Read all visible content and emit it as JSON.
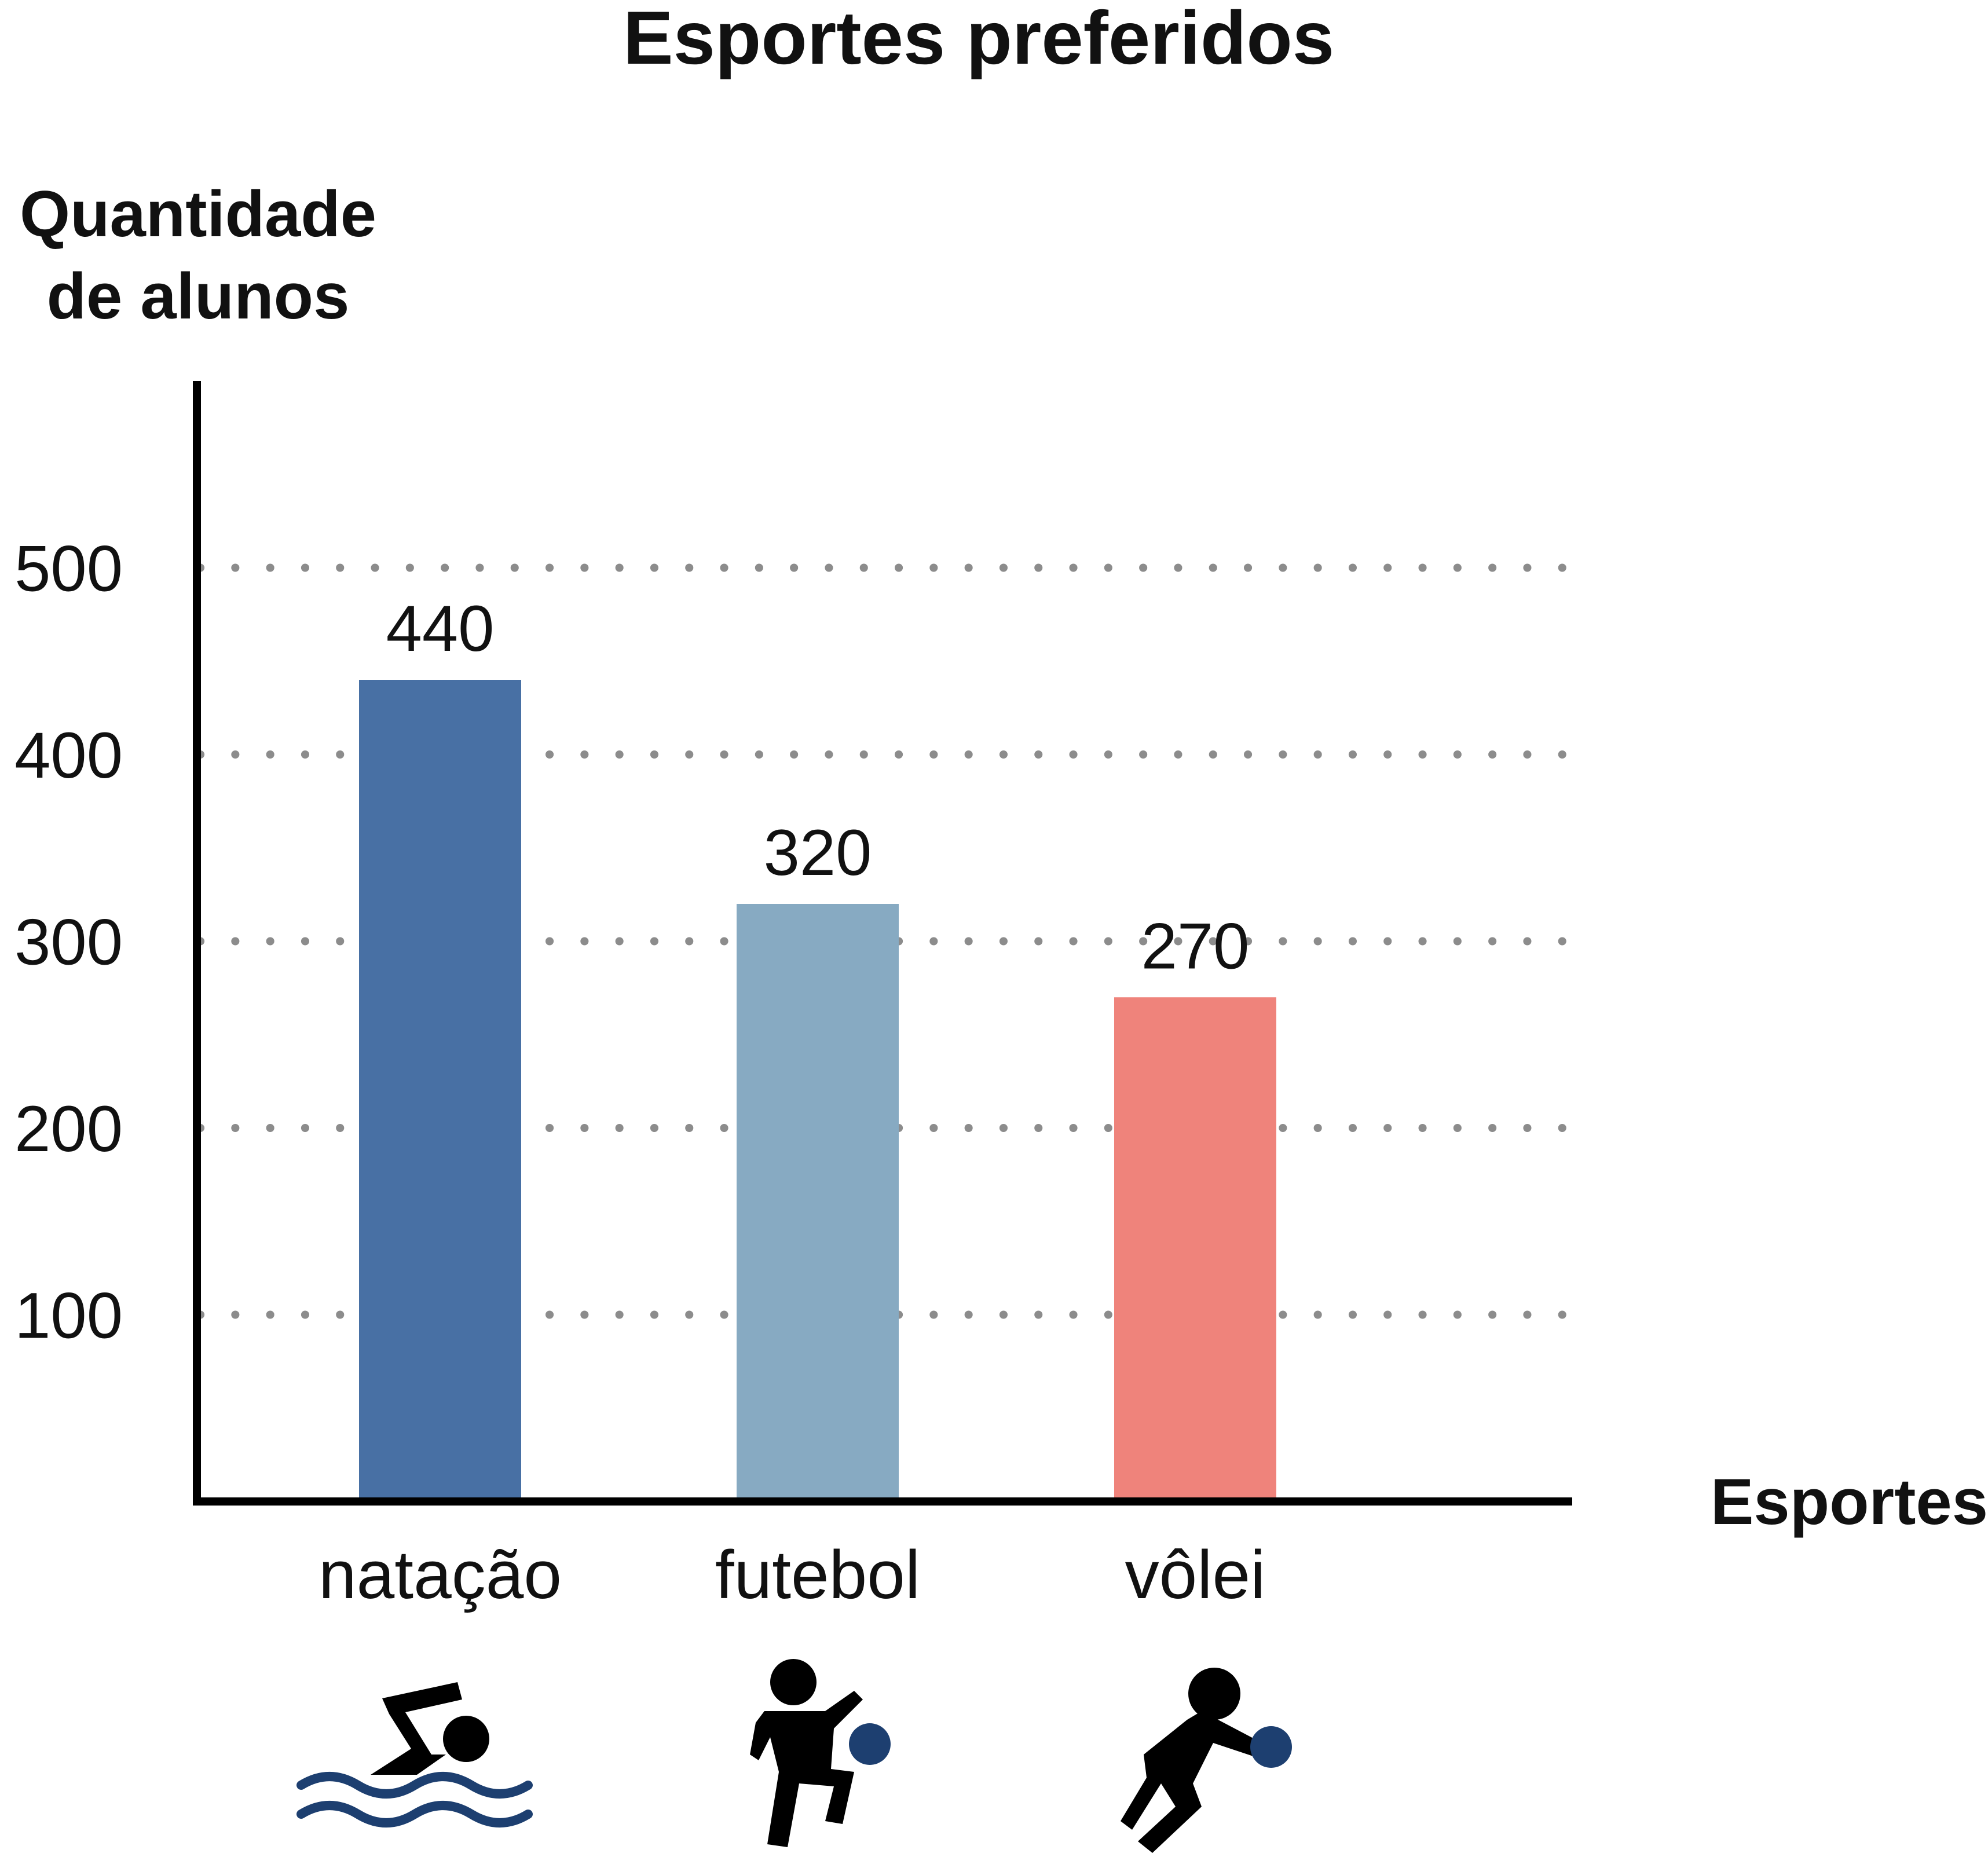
{
  "chart_data": {
    "type": "bar",
    "title": "Esportes preferidos",
    "xlabel": "Esportes",
    "ylabel_lines": [
      "Quantidade",
      "de alunos"
    ],
    "ylim": [
      0,
      600
    ],
    "yticks": [
      100,
      200,
      300,
      400,
      500
    ],
    "grid": "dotted horizontal",
    "categories": [
      "natação",
      "futebol",
      "vôlei"
    ],
    "values": [
      440,
      320,
      270
    ],
    "data_labels": [
      "440",
      "320",
      "270"
    ],
    "colors": [
      "#4870a4",
      "#87aac2",
      "#ef837b"
    ],
    "icons": [
      "swimmer-icon",
      "soccer-player-icon",
      "volleyball-player-icon"
    ]
  }
}
